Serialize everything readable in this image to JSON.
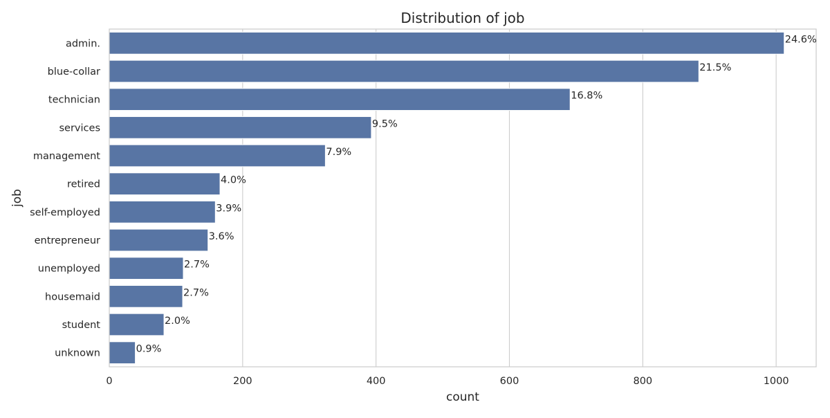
{
  "chart_data": {
    "type": "bar",
    "orientation": "horizontal",
    "title": "Distribution of job",
    "xlabel": "count",
    "ylabel": "job",
    "xlim": [
      0,
      1060
    ],
    "xticks": [
      0,
      200,
      400,
      600,
      800,
      1000
    ],
    "grid": "vertical",
    "bar_color": "#5875a4",
    "categories": [
      "admin.",
      "blue-collar",
      "technician",
      "services",
      "management",
      "retired",
      "self-employed",
      "entrepreneur",
      "unemployed",
      "housemaid",
      "student",
      "unknown"
    ],
    "values": [
      1012,
      884,
      691,
      393,
      324,
      166,
      159,
      148,
      111,
      110,
      82,
      39
    ],
    "labels": [
      "24.6%",
      "21.5%",
      "16.8%",
      "9.5%",
      "7.9%",
      "4.0%",
      "3.9%",
      "3.6%",
      "2.7%",
      "2.7%",
      "2.0%",
      "0.9%"
    ]
  }
}
